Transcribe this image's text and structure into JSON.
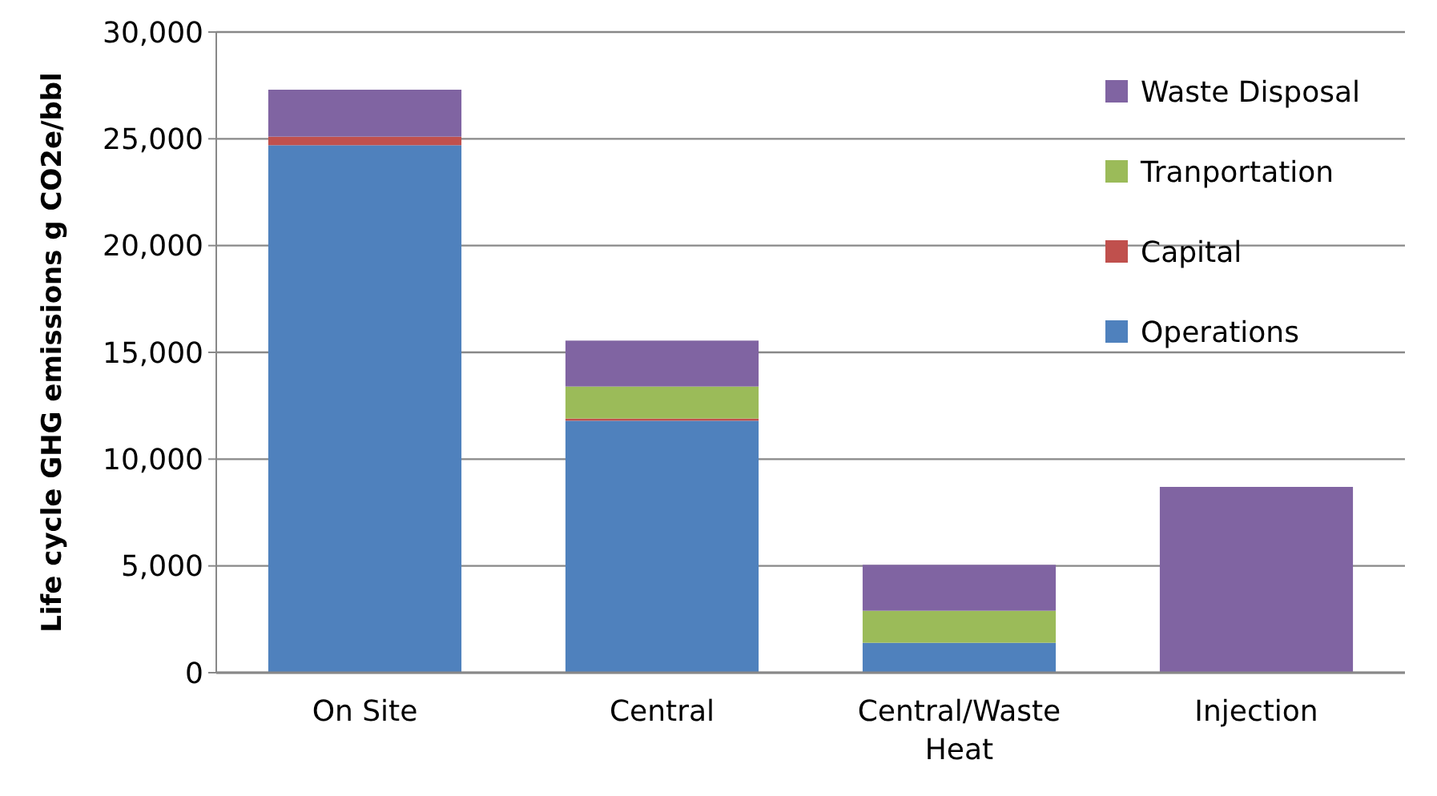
{
  "chart_data": {
    "type": "bar",
    "ylabel": "Life cycle GHG emissions  g CO2e/bbl",
    "categories": [
      "On Site",
      "Central",
      "Central/Waste Heat",
      "Injection"
    ],
    "stacked": true,
    "ylim": [
      0,
      30000
    ],
    "yticks": [
      {
        "value": 0,
        "label": "0"
      },
      {
        "value": 5000,
        "label": "5,000"
      },
      {
        "value": 10000,
        "label": "10,000"
      },
      {
        "value": 15000,
        "label": "15,000"
      },
      {
        "value": 20000,
        "label": "20,000"
      },
      {
        "value": 25000,
        "label": "25,000"
      },
      {
        "value": 30000,
        "label": "30,000"
      }
    ],
    "grid": "y",
    "legend": "top right",
    "series": [
      {
        "name": "Operations",
        "color": "#4f81bd",
        "values": [
          24700,
          11800,
          1400,
          0
        ]
      },
      {
        "name": "Capital",
        "color": "#c0504d",
        "values": [
          400,
          100,
          0,
          0
        ]
      },
      {
        "name": "Tranportation",
        "color": "#9bbb59",
        "values": [
          0,
          1500,
          1500,
          0
        ]
      },
      {
        "name": "Waste Disposal",
        "color": "#8064a2",
        "values": [
          2200,
          2150,
          2150,
          8700
        ]
      }
    ]
  }
}
